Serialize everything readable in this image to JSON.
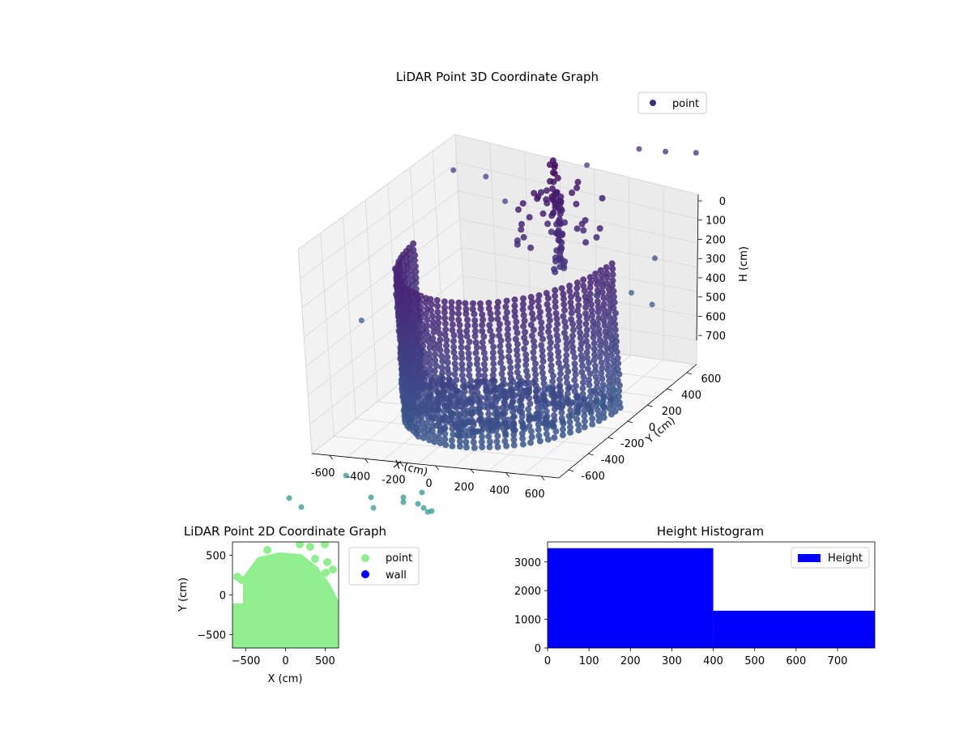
{
  "chart_data": [
    {
      "type": "scatter",
      "title": "LiDAR Point 3D Coordinate Graph",
      "xlabel": "X (cm)",
      "ylabel": "Y (cm)",
      "zlabel": "H (cm)",
      "xlim": [
        -700,
        700
      ],
      "ylim": [
        -700,
        700
      ],
      "zlim": [
        750,
        0
      ],
      "x_ticks": [
        -600,
        -400,
        -200,
        0,
        200,
        400,
        600
      ],
      "y_ticks": [
        -600,
        -400,
        -200,
        0,
        200,
        400,
        600
      ],
      "z_ticks": [
        0,
        100,
        200,
        300,
        400,
        500,
        600,
        700
      ],
      "colormap": "viridis",
      "legend": {
        "placement": "top-right",
        "entries": [
          {
            "name": "point",
            "color": "#3b2f80"
          }
        ]
      },
      "grid": true,
      "series": [
        {
          "name": "point",
          "wall": {
            "shape": "semi-cylinder",
            "radius": 560,
            "arc_deg": [
              180,
              360
            ],
            "h_range": [
              0,
              750
            ]
          },
          "floor_h": 720,
          "column": {
            "x": 0,
            "y": 480,
            "h_range": [
              0,
              420
            ]
          },
          "scatter_points": [
            {
              "x": -650,
              "y": 600,
              "h": 120
            },
            {
              "x": -500,
              "y": 650,
              "h": 150
            },
            {
              "x": -300,
              "y": 500,
              "h": 180
            },
            {
              "x": 100,
              "y": 620,
              "h": 60
            },
            {
              "x": 350,
              "y": 700,
              "h": 10
            },
            {
              "x": 500,
              "y": 700,
              "h": 10
            },
            {
              "x": 680,
              "y": 690,
              "h": 0
            },
            {
              "x": 600,
              "y": 400,
              "h": 300
            },
            {
              "x": 520,
              "y": 300,
              "h": 400
            },
            {
              "x": 450,
              "y": 100,
              "h": 350
            },
            {
              "x": -700,
              "y": -200,
              "h": 420
            },
            {
              "x": 700,
              "y": 200,
              "h": 400
            },
            {
              "x": 650,
              "y": -100,
              "h": 620
            },
            {
              "x": 700,
              "y": -300,
              "h": 600
            }
          ]
        }
      ]
    },
    {
      "type": "scatter",
      "title": "LiDAR Point 2D Coordinate Graph",
      "xlabel": "X (cm)",
      "ylabel": "Y (cm)",
      "xlim": [
        -670,
        670
      ],
      "ylim": [
        -670,
        670
      ],
      "x_ticks": [
        -500,
        0,
        500
      ],
      "y_ticks": [
        -500,
        0,
        500
      ],
      "legend": {
        "placement": "outside-right",
        "entries": [
          {
            "name": "point",
            "color": "#90ee90"
          },
          {
            "name": "wall",
            "color": "#0000ff"
          }
        ]
      },
      "series": [
        {
          "name": "point",
          "color": "#90ee90"
        },
        {
          "name": "wall",
          "color": "#0000ff"
        }
      ]
    },
    {
      "type": "bar",
      "title": "Height Histogram",
      "xlabel": "",
      "ylabel": "",
      "xlim": [
        0,
        790
      ],
      "ylim": [
        0,
        3700
      ],
      "x_ticks": [
        0,
        100,
        200,
        300,
        400,
        500,
        600,
        700
      ],
      "y_ticks": [
        0,
        1000,
        2000,
        3000
      ],
      "bins": [
        {
          "from": 0,
          "to": 400,
          "count": 3480
        },
        {
          "from": 400,
          "to": 790,
          "count": 1300
        }
      ],
      "color": "#0000ff",
      "legend": {
        "placement": "top-right",
        "entries": [
          {
            "name": "Height",
            "color": "#0000ff"
          }
        ]
      }
    }
  ]
}
